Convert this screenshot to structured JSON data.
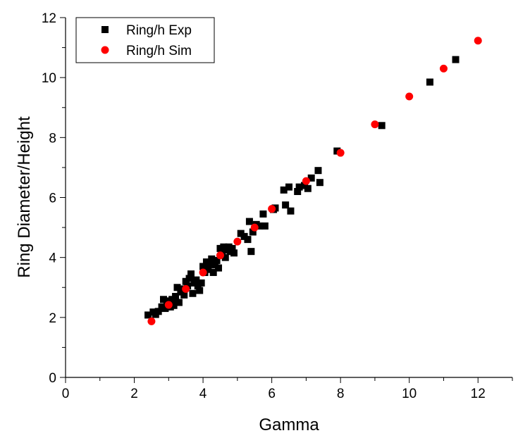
{
  "chart_data": {
    "type": "scatter",
    "title": "",
    "xlabel": "Gamma",
    "ylabel": "Ring Diameter/Height",
    "xlim": [
      0,
      13
    ],
    "ylim": [
      0,
      12
    ],
    "xticks": [
      "0",
      "2",
      "4",
      "6",
      "8",
      "10",
      "12"
    ],
    "yticks": [
      "0",
      "2",
      "4",
      "6",
      "8",
      "10",
      "12"
    ],
    "grid": false,
    "legend_position": "top-left",
    "series": [
      {
        "name": "Ring/h Exp",
        "marker": "square",
        "color": "#000000",
        "points": [
          [
            2.4,
            2.08
          ],
          [
            2.55,
            2.18
          ],
          [
            2.62,
            2.1
          ],
          [
            2.7,
            2.2
          ],
          [
            2.8,
            2.35
          ],
          [
            2.85,
            2.6
          ],
          [
            2.9,
            2.3
          ],
          [
            2.95,
            2.45
          ],
          [
            3.0,
            2.55
          ],
          [
            3.05,
            2.35
          ],
          [
            3.1,
            2.6
          ],
          [
            3.15,
            2.4
          ],
          [
            3.2,
            2.7
          ],
          [
            3.25,
            3.0
          ],
          [
            3.3,
            2.5
          ],
          [
            3.35,
            2.85
          ],
          [
            3.4,
            2.95
          ],
          [
            3.45,
            2.75
          ],
          [
            3.5,
            3.2
          ],
          [
            3.55,
            3.05
          ],
          [
            3.6,
            3.3
          ],
          [
            3.65,
            3.45
          ],
          [
            3.7,
            2.8
          ],
          [
            3.75,
            3.15
          ],
          [
            3.8,
            3.25
          ],
          [
            3.85,
            3.05
          ],
          [
            3.9,
            2.9
          ],
          [
            3.95,
            3.15
          ],
          [
            4.0,
            3.7
          ],
          [
            4.05,
            3.5
          ],
          [
            4.1,
            3.85
          ],
          [
            4.15,
            3.6
          ],
          [
            4.2,
            3.8
          ],
          [
            4.25,
            3.95
          ],
          [
            4.3,
            3.5
          ],
          [
            4.35,
            3.75
          ],
          [
            4.4,
            3.9
          ],
          [
            4.45,
            3.65
          ],
          [
            4.5,
            4.3
          ],
          [
            4.55,
            4.1
          ],
          [
            4.6,
            4.35
          ],
          [
            4.65,
            4.0
          ],
          [
            4.7,
            4.25
          ],
          [
            4.75,
            4.35
          ],
          [
            4.8,
            4.2
          ],
          [
            4.85,
            4.3
          ],
          [
            4.9,
            4.15
          ],
          [
            5.1,
            4.8
          ],
          [
            5.2,
            4.7
          ],
          [
            5.3,
            4.6
          ],
          [
            5.35,
            5.2
          ],
          [
            5.4,
            4.2
          ],
          [
            5.45,
            4.85
          ],
          [
            5.55,
            5.1
          ],
          [
            5.65,
            5.05
          ],
          [
            5.75,
            5.45
          ],
          [
            5.8,
            5.05
          ],
          [
            6.05,
            5.6
          ],
          [
            6.1,
            5.65
          ],
          [
            6.35,
            6.25
          ],
          [
            6.4,
            5.75
          ],
          [
            6.5,
            6.35
          ],
          [
            6.55,
            5.55
          ],
          [
            6.75,
            6.2
          ],
          [
            6.8,
            6.35
          ],
          [
            6.95,
            6.4
          ],
          [
            7.05,
            6.3
          ],
          [
            7.15,
            6.65
          ],
          [
            7.35,
            6.9
          ],
          [
            7.4,
            6.5
          ],
          [
            7.9,
            7.55
          ],
          [
            9.2,
            8.4
          ],
          [
            10.6,
            9.85
          ],
          [
            11.35,
            10.6
          ]
        ]
      },
      {
        "name": "Ring/h Sim",
        "marker": "circle",
        "color": "#ff0000",
        "points": [
          [
            2.5,
            1.87
          ],
          [
            3.0,
            2.42
          ],
          [
            3.5,
            2.95
          ],
          [
            4.0,
            3.5
          ],
          [
            4.5,
            4.07
          ],
          [
            5.0,
            4.53
          ],
          [
            5.5,
            5.0
          ],
          [
            6.0,
            5.62
          ],
          [
            7.0,
            6.55
          ],
          [
            8.0,
            7.49
          ],
          [
            9.0,
            8.44
          ],
          [
            10.0,
            9.37
          ],
          [
            11.0,
            10.3
          ],
          [
            12.0,
            11.23
          ]
        ]
      }
    ]
  }
}
